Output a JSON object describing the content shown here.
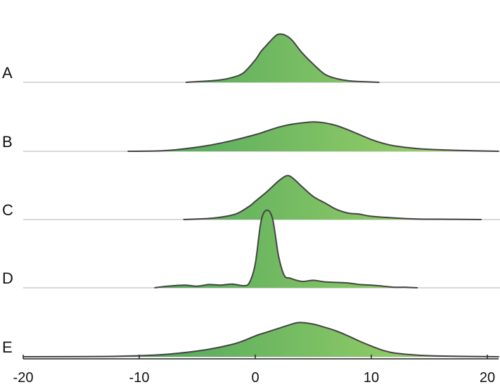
{
  "chart_data": {
    "type": "area",
    "subtype": "ridgeline",
    "title": "",
    "xlabel": "",
    "ylabel": "",
    "xlim": [
      -20,
      21
    ],
    "xticks": [
      -20,
      -10,
      0,
      10,
      20
    ],
    "fill_gradient": [
      "#2e9457",
      "#a8d86a"
    ],
    "outline_color": "#444444",
    "baseline_color": "#d9d9d9",
    "grid": false,
    "legend": "none",
    "series": [
      {
        "name": "A",
        "x": [
          -6.0,
          -4.5,
          -3.2,
          -2.0,
          -1.0,
          0.0,
          0.5,
          1.0,
          1.6,
          2.0,
          2.6,
          3.2,
          4.0,
          5.0,
          6.0,
          7.0,
          8.0,
          9.0,
          10.7
        ],
        "density": [
          0.0,
          0.02,
          0.04,
          0.09,
          0.18,
          0.42,
          0.58,
          0.7,
          0.84,
          0.9,
          0.88,
          0.78,
          0.56,
          0.34,
          0.15,
          0.07,
          0.03,
          0.015,
          0.0
        ]
      },
      {
        "name": "B",
        "x": [
          -11.0,
          -8.0,
          -6.0,
          -4.0,
          -2.0,
          0.0,
          1.0,
          2.0,
          3.0,
          4.0,
          5.0,
          6.0,
          7.0,
          8.0,
          9.0,
          10.0,
          11.0,
          12.0,
          14.0,
          17.0,
          21.0
        ],
        "density": [
          0.0,
          0.01,
          0.05,
          0.11,
          0.2,
          0.31,
          0.38,
          0.45,
          0.5,
          0.53,
          0.55,
          0.53,
          0.48,
          0.4,
          0.31,
          0.22,
          0.15,
          0.1,
          0.05,
          0.02,
          0.0
        ]
      },
      {
        "name": "C",
        "x": [
          -6.2,
          -4.0,
          -2.5,
          -1.5,
          -0.5,
          0.0,
          1.0,
          2.0,
          2.7,
          3.2,
          4.0,
          5.0,
          6.0,
          7.0,
          8.0,
          9.0,
          10.0,
          12.0,
          14.0,
          17.0,
          19.5
        ],
        "density": [
          0.0,
          0.02,
          0.06,
          0.12,
          0.25,
          0.34,
          0.52,
          0.72,
          0.82,
          0.78,
          0.62,
          0.43,
          0.31,
          0.19,
          0.12,
          0.1,
          0.06,
          0.03,
          0.01,
          0.005,
          0.0
        ]
      },
      {
        "name": "D",
        "x": [
          -8.7,
          -8.0,
          -7.0,
          -6.0,
          -5.0,
          -4.0,
          -3.0,
          -2.0,
          -1.0,
          -0.5,
          0.0,
          0.5,
          1.0,
          1.5,
          2.0,
          2.5,
          3.0,
          4.0,
          5.0,
          6.0,
          7.0,
          8.0,
          9.0,
          10.0,
          11.0,
          12.0,
          13.0,
          14.0
        ],
        "density": [
          0.0,
          0.02,
          0.04,
          0.05,
          0.03,
          0.06,
          0.05,
          0.07,
          0.04,
          0.1,
          0.45,
          1.25,
          1.45,
          1.28,
          0.6,
          0.23,
          0.18,
          0.12,
          0.14,
          0.11,
          0.1,
          0.09,
          0.06,
          0.05,
          0.03,
          0.01,
          0.01,
          0.0
        ]
      },
      {
        "name": "E",
        "x": [
          -20.0,
          -13.0,
          -10.0,
          -8.0,
          -6.0,
          -4.0,
          -2.0,
          -1.0,
          0.0,
          1.0,
          2.0,
          3.0,
          3.8,
          5.0,
          6.0,
          7.0,
          8.0,
          9.0,
          10.0,
          11.0,
          12.0,
          14.0,
          17.0,
          21.0
        ],
        "density": [
          0.0,
          0.005,
          0.02,
          0.04,
          0.08,
          0.14,
          0.23,
          0.3,
          0.39,
          0.46,
          0.53,
          0.6,
          0.64,
          0.61,
          0.55,
          0.48,
          0.39,
          0.29,
          0.2,
          0.12,
          0.07,
          0.03,
          0.01,
          0.0
        ]
      }
    ]
  }
}
